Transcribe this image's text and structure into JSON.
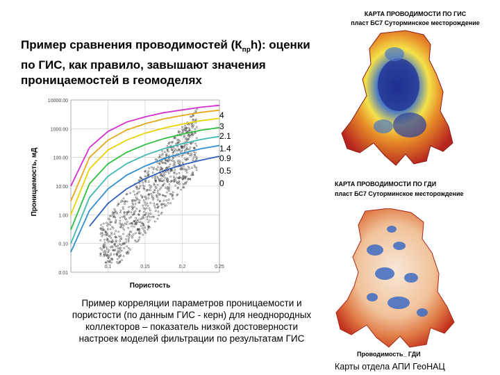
{
  "slide": {
    "title_pre": "Пример сравнения проводимостей (К",
    "title_sub": "пр",
    "title_post": "h): оценки по ГИС, как правило, завышают значения проницаемостей в геомоделях",
    "caption": "Пример корреляции параметров проницаемости и пористости (по данным ГИС - керн) для неоднородных коллекторов – показатель низкой достоверности настроек моделей фильтрации по результатам ГИС",
    "credit": "Карты отдела АПИ ГеоНАЦ"
  },
  "map_gis": {
    "title_line1": "КАРТА ПРОВОДИМОСТИ ПО ГИС",
    "title_line2": "пласт БС7 Суторминское месторождение"
  },
  "map_gdi": {
    "title_line1": "КАРТА ПРОВОДИМОСТИ ПО ГДИ",
    "title_line2": "пласт БС7 Суторминское месторождение",
    "legend_label": "Проводимость_ ГДИ"
  },
  "colors": {
    "deep_blue": "#1f2f8f",
    "blue": "#4a78c4",
    "yellow": "#f4e24a",
    "orange": "#e8902a",
    "red": "#b7261e"
  },
  "chart_data": {
    "type": "scatter",
    "xlabel": "Пористость",
    "ylabel": "Проницаемость, мД",
    "x_ticks": [
      "0.1",
      "0.15",
      "0.2",
      "0.25"
    ],
    "y_ticks": [
      "10000.00",
      "1000.00",
      "100.00",
      "10.00",
      "1.00",
      "0.10",
      "0.01"
    ],
    "xlim": [
      0.05,
      0.25
    ],
    "ylim": [
      0.01,
      10000
    ],
    "log_y": true,
    "series": [
      {
        "name": "4",
        "color": "#d22fcf",
        "points": [
          [
            0.05,
            10
          ],
          [
            0.075,
            220
          ],
          [
            0.1,
            800
          ],
          [
            0.125,
            1700
          ],
          [
            0.15,
            2600
          ],
          [
            0.175,
            3600
          ],
          [
            0.2,
            4500
          ],
          [
            0.225,
            5600
          ],
          [
            0.25,
            6500
          ]
        ]
      },
      {
        "name": "3",
        "color": "#e6a71a",
        "points": [
          [
            0.05,
            3
          ],
          [
            0.075,
            100
          ],
          [
            0.1,
            400
          ],
          [
            0.125,
            900
          ],
          [
            0.15,
            1500
          ],
          [
            0.175,
            2200
          ],
          [
            0.2,
            2900
          ],
          [
            0.225,
            3700
          ],
          [
            0.25,
            4400
          ]
        ]
      },
      {
        "name": "2.1",
        "color": "#e8d400",
        "points": [
          [
            0.05,
            1
          ],
          [
            0.075,
            40
          ],
          [
            0.1,
            180
          ],
          [
            0.125,
            400
          ],
          [
            0.15,
            700
          ],
          [
            0.175,
            1050
          ],
          [
            0.2,
            1450
          ],
          [
            0.225,
            1900
          ],
          [
            0.25,
            2300
          ]
        ]
      },
      {
        "name": "1.4",
        "color": "#2dbf3c",
        "points": [
          [
            0.05,
            0.3
          ],
          [
            0.075,
            12
          ],
          [
            0.1,
            60
          ],
          [
            0.125,
            150
          ],
          [
            0.15,
            280
          ],
          [
            0.175,
            450
          ],
          [
            0.2,
            650
          ],
          [
            0.225,
            880
          ],
          [
            0.25,
            1100
          ]
        ]
      },
      {
        "name": "0.9",
        "color": "#3db8b0",
        "points": [
          [
            0.05,
            0.1
          ],
          [
            0.075,
            4
          ],
          [
            0.1,
            22
          ],
          [
            0.125,
            60
          ],
          [
            0.15,
            120
          ],
          [
            0.175,
            200
          ],
          [
            0.2,
            300
          ],
          [
            0.225,
            420
          ],
          [
            0.25,
            540
          ]
        ]
      },
      {
        "name": "0.5",
        "color": "#2f8fd3",
        "points": [
          [
            0.05,
            0.05
          ],
          [
            0.075,
            1.4
          ],
          [
            0.1,
            8
          ],
          [
            0.125,
            24
          ],
          [
            0.15,
            50
          ],
          [
            0.175,
            90
          ],
          [
            0.2,
            140
          ],
          [
            0.225,
            200
          ],
          [
            0.25,
            260
          ]
        ]
      },
      {
        "name": "0",
        "color": "#2f5fbf",
        "points": [
          [
            0.075,
            0.4
          ],
          [
            0.1,
            2.5
          ],
          [
            0.125,
            8
          ],
          [
            0.15,
            18
          ],
          [
            0.175,
            34
          ],
          [
            0.2,
            55
          ],
          [
            0.225,
            80
          ],
          [
            0.25,
            110
          ]
        ]
      }
    ]
  }
}
